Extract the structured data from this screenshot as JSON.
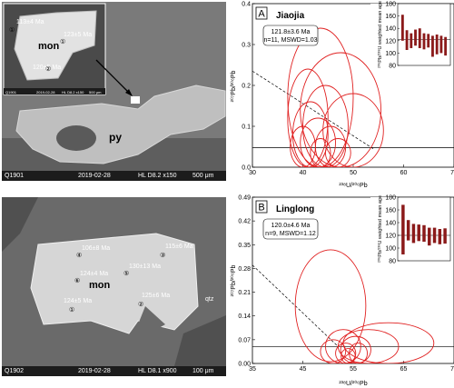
{
  "sem_top": {
    "mineral_label": "mon",
    "host_label": "py",
    "ages": [
      "113±4 Ma",
      "123±5 Ma",
      "120±5 Ma"
    ],
    "spot_numbers": [
      "①",
      "①",
      "②"
    ],
    "inset_footer": {
      "id": "Q1901",
      "date": "2019-02-28",
      "info": "HL  D8.2  x150",
      "scale": "500 μm"
    },
    "footer": {
      "id": "Q1901",
      "date": "2019-02-28",
      "info": "HL  D8.2  x150",
      "scale": "500 μm"
    }
  },
  "sem_bottom": {
    "mineral_label": "mon",
    "host_label": "qtz",
    "ages": [
      "106±8 Ma",
      "115±6 Ma",
      "124±4 Ma",
      "130±13 Ma",
      "124±5 Ma",
      "125±6 Ma"
    ],
    "spot_numbers": [
      "④",
      "③",
      "⑥",
      "⑤",
      "①",
      "②"
    ],
    "footer": {
      "id": "Q1902",
      "date": "2019-02-28",
      "info": "HL  D8.1  x900",
      "scale": "100 μm"
    }
  },
  "chart_data": [
    {
      "type": "scatter",
      "panel_letter": "A",
      "title": "Jiaojia",
      "summary_age": "121.8±3.6 Ma",
      "summary_stats": "n=11, MSWD=1.03",
      "xlabel": "²³⁸U/²⁰⁶Pb",
      "ylabel": "²⁰⁷Pb/²⁰⁶Pb",
      "xlim": [
        30,
        70
      ],
      "ylim": [
        0,
        0.4
      ],
      "x_ticks": [
        "30",
        "40",
        "50",
        "60",
        "70"
      ],
      "y_ticks": [
        "0.0",
        "0.1",
        "0.2",
        "0.3",
        "0.4"
      ],
      "common_pb_line": {
        "x": [
          30,
          54
        ],
        "y": [
          0.235,
          0.045
        ]
      },
      "concordia_y": 0.048,
      "ellipses": [
        {
          "x": 43.5,
          "y": 0.17,
          "rx": 6.5,
          "ry": 0.17
        },
        {
          "x": 47.5,
          "y": 0.14,
          "rx": 8.0,
          "ry": 0.14
        },
        {
          "x": 41.0,
          "y": 0.12,
          "rx": 4.0,
          "ry": 0.12
        },
        {
          "x": 44.5,
          "y": 0.1,
          "rx": 4.5,
          "ry": 0.1
        },
        {
          "x": 41.5,
          "y": 0.08,
          "rx": 3.5,
          "ry": 0.08
        },
        {
          "x": 50.0,
          "y": 0.09,
          "rx": 6.0,
          "ry": 0.09
        },
        {
          "x": 43.0,
          "y": 0.06,
          "rx": 3.5,
          "ry": 0.06
        },
        {
          "x": 40.0,
          "y": 0.05,
          "rx": 2.5,
          "ry": 0.05
        },
        {
          "x": 45.5,
          "y": 0.05,
          "rx": 3.0,
          "ry": 0.05
        },
        {
          "x": 43.5,
          "y": 0.035,
          "rx": 2.0,
          "ry": 0.035
        },
        {
          "x": 47.0,
          "y": 0.035,
          "rx": 2.5,
          "ry": 0.035
        }
      ],
      "inset": {
        "ylabel": "²⁰⁶Pb/²³⁸U weighted mean age",
        "ylim": [
          80,
          180
        ],
        "y_ticks": [
          "80",
          "100",
          "120",
          "140",
          "160",
          "180"
        ],
        "mean": 121.8,
        "bars": [
          {
            "low": 120,
            "high": 162
          },
          {
            "low": 105,
            "high": 137
          },
          {
            "low": 108,
            "high": 132
          },
          {
            "low": 112,
            "high": 138
          },
          {
            "low": 108,
            "high": 140
          },
          {
            "low": 106,
            "high": 132
          },
          {
            "low": 109,
            "high": 131
          },
          {
            "low": 94,
            "high": 128
          },
          {
            "low": 98,
            "high": 130
          },
          {
            "low": 100,
            "high": 128
          },
          {
            "low": 96,
            "high": 126
          }
        ]
      }
    },
    {
      "type": "scatter",
      "panel_letter": "B",
      "title": "Linglong",
      "summary_age": "120.0±4.6 Ma",
      "summary_stats": "n=9, MSWD=1.12",
      "xlabel": "²³⁸U/²⁰⁶Pb",
      "ylabel": "²⁰⁷Pb/²⁰⁶Pb",
      "xlim": [
        35,
        75
      ],
      "ylim": [
        0,
        0.49
      ],
      "x_ticks": [
        "35",
        "45",
        "55",
        "65",
        "75"
      ],
      "y_ticks": [
        "0.00",
        "0.07",
        "0.14",
        "0.21",
        "0.28",
        "0.35",
        "0.42",
        "0.49"
      ],
      "common_pb_line": {
        "x": [
          35,
          52
        ],
        "y": [
          0.29,
          0.05
        ]
      },
      "concordia_y": 0.05,
      "ellipses": [
        {
          "x": 50.5,
          "y": 0.17,
          "rx": 7.0,
          "ry": 0.165
        },
        {
          "x": 62.0,
          "y": 0.06,
          "rx": 9.0,
          "ry": 0.06
        },
        {
          "x": 58.0,
          "y": 0.05,
          "rx": 6.0,
          "ry": 0.05
        },
        {
          "x": 53.0,
          "y": 0.05,
          "rx": 3.5,
          "ry": 0.05
        },
        {
          "x": 55.5,
          "y": 0.04,
          "rx": 3.0,
          "ry": 0.04
        },
        {
          "x": 51.0,
          "y": 0.035,
          "rx": 2.5,
          "ry": 0.035
        },
        {
          "x": 53.5,
          "y": 0.03,
          "rx": 2.0,
          "ry": 0.03
        },
        {
          "x": 56.0,
          "y": 0.03,
          "rx": 1.8,
          "ry": 0.03
        },
        {
          "x": 54.0,
          "y": 0.022,
          "rx": 1.4,
          "ry": 0.022
        }
      ],
      "inset": {
        "ylabel": "²⁰⁶Pb/²³⁸U weighted mean age",
        "ylim": [
          80,
          180
        ],
        "y_ticks": [
          "80",
          "100",
          "120",
          "140",
          "160",
          "180"
        ],
        "mean": 120.0,
        "bars": [
          {
            "low": 90,
            "high": 168
          },
          {
            "low": 112,
            "high": 144
          },
          {
            "low": 108,
            "high": 138
          },
          {
            "low": 111,
            "high": 137
          },
          {
            "low": 110,
            "high": 136
          },
          {
            "low": 104,
            "high": 132
          },
          {
            "low": 108,
            "high": 132
          },
          {
            "low": 106,
            "high": 130
          },
          {
            "low": 107,
            "high": 131
          }
        ]
      }
    }
  ]
}
